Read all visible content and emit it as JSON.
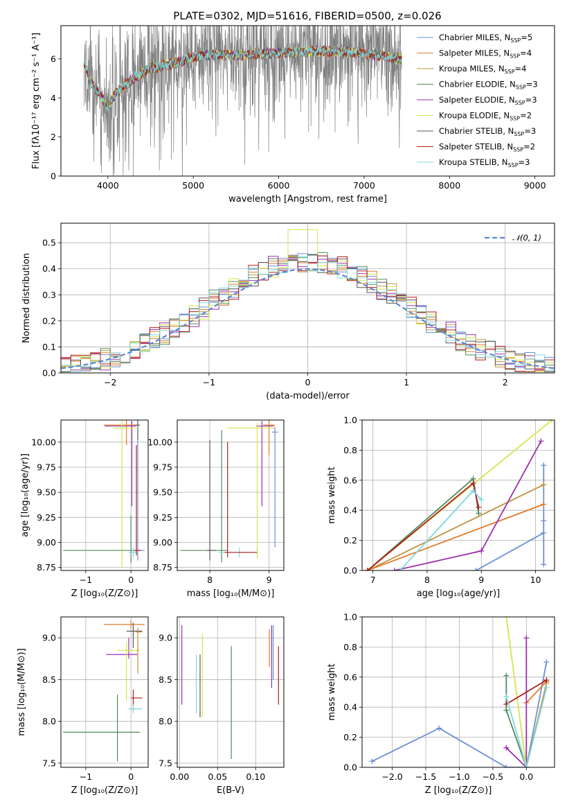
{
  "title": "PLATE=0302, MJD=51616, FIBERID=0500, z=0.026",
  "colors": [
    "#6a8fd6",
    "#e07b2a",
    "#c2913a",
    "#4f8a5b",
    "#9b2fae",
    "#d4e64a",
    "#555555",
    "#b01c1c",
    "#7dd8dc"
  ],
  "models": [
    {
      "name": "Chabrier MILES, N",
      "sub": "SSP",
      "suffix": "=5",
      "color": "#6a8fd6"
    },
    {
      "name": "Salpeter MILES, N",
      "sub": "SSP",
      "suffix": "=4",
      "color": "#e07b2a"
    },
    {
      "name": "Kroupa MILES, N",
      "sub": "SSP",
      "suffix": "=4",
      "color": "#c2913a"
    },
    {
      "name": "Chabrier ELODIE, N",
      "sub": "SSP",
      "suffix": "=3",
      "color": "#4f8a5b"
    },
    {
      "name": "Salpeter ELODIE, N",
      "sub": "SSP",
      "suffix": "=3",
      "color": "#9b2fae"
    },
    {
      "name": "Kroupa ELODIE, N",
      "sub": "SSP",
      "suffix": "=2",
      "color": "#d4e64a"
    },
    {
      "name": "Chabrier STELIB, N",
      "sub": "SSP",
      "suffix": "=3",
      "color": "#555555"
    },
    {
      "name": "Salpeter STELIB, N",
      "sub": "SSP",
      "suffix": "=2",
      "color": "#b01c1c"
    },
    {
      "name": "Kroupa STELIB, N",
      "sub": "SSP",
      "suffix": "=3",
      "color": "#7dd8dc"
    }
  ],
  "chart_data": [
    {
      "id": "spectrum",
      "type": "line",
      "xlabel": "wavelength [Angstrom, rest frame]",
      "ylabel": "Flux [fλ10⁻¹⁷ erg cm⁻² s⁻¹ A⁻¹]",
      "xlim": [
        3450,
        9230
      ],
      "ylim": [
        0,
        7.7
      ],
      "xticks": [
        4000,
        5000,
        6000,
        7000,
        8000,
        9000
      ],
      "yticks": [
        0,
        2,
        4,
        6
      ],
      "data_range": [
        3720,
        7440
      ],
      "model_profile": {
        "x": [
          3720,
          3800,
          3900,
          4000,
          4100,
          4300,
          4500,
          4800,
          5000,
          5200,
          5500,
          6000,
          6500,
          7000,
          7400
        ],
        "y": [
          5.8,
          4.8,
          4.2,
          3.5,
          4.3,
          5.0,
          5.5,
          5.8,
          6.1,
          6.2,
          6.2,
          6.3,
          6.4,
          6.3,
          6.0
        ]
      },
      "legend": "top-right",
      "grid": false
    },
    {
      "id": "residuals",
      "type": "line",
      "xlabel": "(data-model)/error",
      "ylabel": "Normed distribution",
      "xlim": [
        -2.5,
        2.5
      ],
      "ylim": [
        0,
        0.575
      ],
      "xticks": [
        -2,
        -1,
        0,
        1,
        2
      ],
      "yticks": [
        0.0,
        0.1,
        0.2,
        0.3,
        0.4,
        0.5
      ],
      "legend_label": "𝒩(0, 1)",
      "legend": "top-right",
      "grid": true,
      "gaussian": {
        "mu": 0,
        "sigma": 1,
        "color": "#5b86d6"
      }
    },
    {
      "id": "age_vs_Z",
      "type": "scatter",
      "xlabel": "Z [log₁₀(Z/Z⊙)]",
      "ylabel": "age  [log₁₀(age/yr)]",
      "xlim": [
        -1.55,
        0.38
      ],
      "ylim": [
        8.72,
        10.22
      ],
      "xticks": [
        -1,
        0
      ],
      "yticks": [
        8.75,
        9.0,
        9.25,
        9.5,
        9.75,
        10.0
      ],
      "points": [
        {
          "x": 0.15,
          "y": 10.17,
          "xerr": [
            0.1,
            0.05
          ],
          "yerr": [
            0.15,
            0.05
          ],
          "c": 6
        },
        {
          "x": 0.02,
          "y": 10.16,
          "xerr": [
            0.6,
            0.1
          ],
          "yerr": [
            0.8,
            0.05
          ],
          "c": 4
        },
        {
          "x": -0.1,
          "y": 10.17,
          "xerr": [
            0.5,
            0.2
          ],
          "yerr": [
            0.2,
            0.1
          ],
          "c": 1
        },
        {
          "x": -0.2,
          "y": 10.14,
          "xerr": [
            0.2,
            0.3
          ],
          "yerr": [
            1.4,
            0.1
          ],
          "c": 5
        },
        {
          "x": 0.0,
          "y": 8.92,
          "xerr": [
            1.5,
            0.05
          ],
          "yerr": [
            0.12,
            0.35
          ],
          "c": 3
        },
        {
          "x": 0.15,
          "y": 8.92,
          "xerr": [
            0.15,
            0.15
          ],
          "yerr": [
            0.1,
            1.1
          ],
          "c": 0
        },
        {
          "x": 0.05,
          "y": 8.9,
          "xerr": [
            0.1,
            0.1
          ],
          "yerr": [
            0.05,
            0.05
          ],
          "c": 8
        },
        {
          "x": 0.12,
          "y": 8.92,
          "xerr": [
            0.05,
            0.1
          ],
          "yerr": [
            0.05,
            1.05
          ],
          "c": 7
        }
      ],
      "grid": true
    },
    {
      "id": "age_vs_mass",
      "type": "scatter",
      "xlabel": "mass [log₁₀(M/M⊙)]",
      "ylabel": "",
      "xlim": [
        7.45,
        9.25
      ],
      "ylim": [
        8.72,
        10.22
      ],
      "xticks": [
        8,
        9
      ],
      "yticks": [
        8.75,
        9.0,
        9.25,
        9.5,
        9.75,
        10.0
      ],
      "points": [
        {
          "x": 9.0,
          "y": 10.17,
          "xerr": [
            0.1,
            0.1
          ],
          "yerr": [
            0.3,
            0.05
          ],
          "c": 1
        },
        {
          "x": 8.88,
          "y": 10.16,
          "xerr": [
            0.1,
            0.2
          ],
          "yerr": [
            0.8,
            0.05
          ],
          "c": 4
        },
        {
          "x": 8.8,
          "y": 10.14,
          "xerr": [
            0.5,
            0.3
          ],
          "yerr": [
            1.3,
            0.05
          ],
          "c": 5
        },
        {
          "x": 9.1,
          "y": 10.1,
          "xerr": [
            0.05,
            0.05
          ],
          "yerr": [
            1.15,
            0.05
          ],
          "c": 0
        },
        {
          "x": 8.2,
          "y": 8.92,
          "xerr": [
            0.7,
            0.1
          ],
          "yerr": [
            0.12,
            1.2
          ],
          "c": 3
        },
        {
          "x": 8.5,
          "y": 8.9,
          "xerr": [
            0.35,
            0.3
          ],
          "yerr": [
            0.05,
            0.05
          ],
          "c": 8
        },
        {
          "x": 8.3,
          "y": 8.9,
          "xerr": [
            0.05,
            0.5
          ],
          "yerr": [
            0.05,
            1.1
          ],
          "c": 7
        },
        {
          "x": 8.0,
          "y": 8.92,
          "xerr": [
            0.05,
            0.1
          ],
          "yerr": [
            0.1,
            1.1
          ],
          "c": 6
        }
      ],
      "grid": true
    },
    {
      "id": "weight_vs_age",
      "type": "line",
      "xlabel": "age  [log₁₀(age/yr)]",
      "ylabel": "mass weight",
      "xlim": [
        6.8,
        10.35
      ],
      "ylim": [
        0,
        1.0
      ],
      "xticks": [
        7,
        8,
        9,
        10
      ],
      "yticks": [
        0.0,
        0.2,
        0.4,
        0.6,
        0.8,
        1.0
      ],
      "series": [
        {
          "c": 0,
          "x": [
            8.9,
            10.15,
            10.15,
            10.15,
            10.15
          ],
          "y": [
            0.0,
            0.25,
            0.7,
            0.04,
            0.33
          ]
        },
        {
          "c": 1,
          "x": [
            6.9,
            10.15
          ],
          "y": [
            0.0,
            0.44
          ]
        },
        {
          "c": 2,
          "x": [
            6.9,
            10.15
          ],
          "y": [
            0.0,
            0.57
          ]
        },
        {
          "c": 3,
          "x": [
            6.9,
            8.85,
            8.95
          ],
          "y": [
            0.0,
            0.61,
            0.38
          ]
        },
        {
          "c": 4,
          "x": [
            7.4,
            9.0,
            10.1
          ],
          "y": [
            0.0,
            0.13,
            0.86
          ]
        },
        {
          "c": 5,
          "x": [
            6.9,
            10.3
          ],
          "y": [
            0.0,
            1.0
          ]
        },
        {
          "c": 7,
          "x": [
            6.9,
            8.85,
            8.95
          ],
          "y": [
            0.0,
            0.58,
            0.42
          ]
        },
        {
          "c": 8,
          "x": [
            7.5,
            8.85,
            9.0
          ],
          "y": [
            0.0,
            0.53,
            0.47
          ]
        }
      ],
      "grid": true
    },
    {
      "id": "mass_vs_Z",
      "type": "scatter",
      "xlabel": "Z [log₁₀(Z/Z⊙)]",
      "ylabel": "mass [log₁₀(M/M⊙)]",
      "xlim": [
        -1.55,
        0.38
      ],
      "ylim": [
        7.45,
        9.25
      ],
      "xticks": [
        -1,
        0
      ],
      "yticks": [
        7.5,
        8.0,
        8.5,
        9.0
      ],
      "points": [
        {
          "x": 0.0,
          "y": 9.16,
          "xerr": [
            0.6,
            0.3
          ],
          "yerr": [
            0.05,
            0.05
          ],
          "c": 1
        },
        {
          "x": 0.05,
          "y": 9.08,
          "xerr": [
            0.15,
            0.2
          ],
          "yerr": [
            0.2,
            0.1
          ],
          "c": 6
        },
        {
          "x": -0.05,
          "y": 8.8,
          "xerr": [
            0.5,
            0.2
          ],
          "yerr": [
            0.05,
            0.2
          ],
          "c": 4
        },
        {
          "x": -0.1,
          "y": 8.85,
          "xerr": [
            0.2,
            0.3
          ],
          "yerr": [
            0.6,
            0.1
          ],
          "c": 5
        },
        {
          "x": -0.3,
          "y": 7.87,
          "xerr": [
            1.2,
            0.5
          ],
          "yerr": [
            0.35,
            0.45
          ],
          "c": 3
        },
        {
          "x": 0.05,
          "y": 8.28,
          "xerr": [
            0.05,
            0.2
          ],
          "yerr": [
            0.15,
            0.1
          ],
          "c": 7
        },
        {
          "x": 0.05,
          "y": 8.15,
          "xerr": [
            0.1,
            0.2
          ],
          "yerr": [
            0.05,
            0.05
          ],
          "c": 8
        },
        {
          "x": 0.15,
          "y": 9.07,
          "xerr": [
            0.05,
            0.1
          ],
          "yerr": [
            0.5,
            0.05
          ],
          "c": 2
        }
      ],
      "grid": true
    },
    {
      "id": "mass_vs_EBV",
      "type": "scatter",
      "xlabel": "E(B-V)",
      "ylabel": "",
      "xlim": [
        -0.003,
        0.137
      ],
      "ylim": [
        7.45,
        9.25
      ],
      "xticks": [
        0.0,
        0.05,
        0.1
      ],
      "yticks": [
        7.5,
        8.0,
        8.5,
        9.0
      ],
      "points": [
        {
          "x": 0.003,
          "y": 8.7,
          "yerr": [
            0.5,
            0.45
          ],
          "c": 4
        },
        {
          "x": 0.03,
          "y": 8.55,
          "yerr": [
            0.5,
            0.5
          ],
          "c": 5
        },
        {
          "x": 0.022,
          "y": 8.5,
          "yerr": [
            0.4,
            0.3
          ],
          "c": 8
        },
        {
          "x": 0.027,
          "y": 8.5,
          "yerr": [
            0.45,
            0.3
          ],
          "c": 6
        },
        {
          "x": 0.068,
          "y": 8.2,
          "yerr": [
            0.65,
            0.7
          ],
          "c": 3
        },
        {
          "x": 0.118,
          "y": 8.8,
          "yerr": [
            0.15,
            0.3
          ],
          "c": 1
        },
        {
          "x": 0.121,
          "y": 8.8,
          "yerr": [
            0.4,
            0.35
          ],
          "c": 4
        },
        {
          "x": 0.123,
          "y": 8.7,
          "yerr": [
            0.2,
            0.45
          ],
          "c": 0
        },
        {
          "x": 0.13,
          "y": 8.55,
          "yerr": [
            0.35,
            0.35
          ],
          "c": 7
        }
      ],
      "grid": true
    },
    {
      "id": "weight_vs_Z",
      "type": "line",
      "xlabel": "Z [log₁₀(Z/Z⊙)]",
      "ylabel": "mass weight",
      "xlim": [
        -2.45,
        0.42
      ],
      "ylim": [
        0,
        1.0
      ],
      "xticks": [
        -2.0,
        -1.5,
        -1.0,
        -0.5,
        0.0
      ],
      "yticks": [
        0.0,
        0.2,
        0.4,
        0.6,
        0.8,
        1.0
      ],
      "series": [
        {
          "c": 0,
          "x": [
            -2.3,
            -1.3,
            -0.3,
            0.0,
            0.3
          ],
          "y": [
            0.04,
            0.26,
            0.0,
            0.0,
            0.7
          ]
        },
        {
          "c": 1,
          "x": [
            0.0,
            0.3
          ],
          "y": [
            0.43,
            0.57
          ]
        },
        {
          "c": 2,
          "x": [
            0.0,
            0.3
          ],
          "y": [
            0.0,
            0.56
          ]
        },
        {
          "c": 3,
          "x": [
            -0.3,
            -0.3,
            0.0
          ],
          "y": [
            0.61,
            0.38,
            0.0
          ]
        },
        {
          "c": 4,
          "x": [
            -0.3,
            0.0,
            0.0
          ],
          "y": [
            0.13,
            0.0,
            0.86
          ]
        },
        {
          "c": 5,
          "x": [
            -0.3,
            0.0
          ],
          "y": [
            1.0,
            0.0
          ]
        },
        {
          "c": 7,
          "x": [
            -0.3,
            0.3
          ],
          "y": [
            0.42,
            0.58
          ]
        },
        {
          "c": 8,
          "x": [
            -0.3,
            0.0,
            0.3
          ],
          "y": [
            0.47,
            0.0,
            0.53
          ]
        }
      ],
      "grid": true
    }
  ]
}
